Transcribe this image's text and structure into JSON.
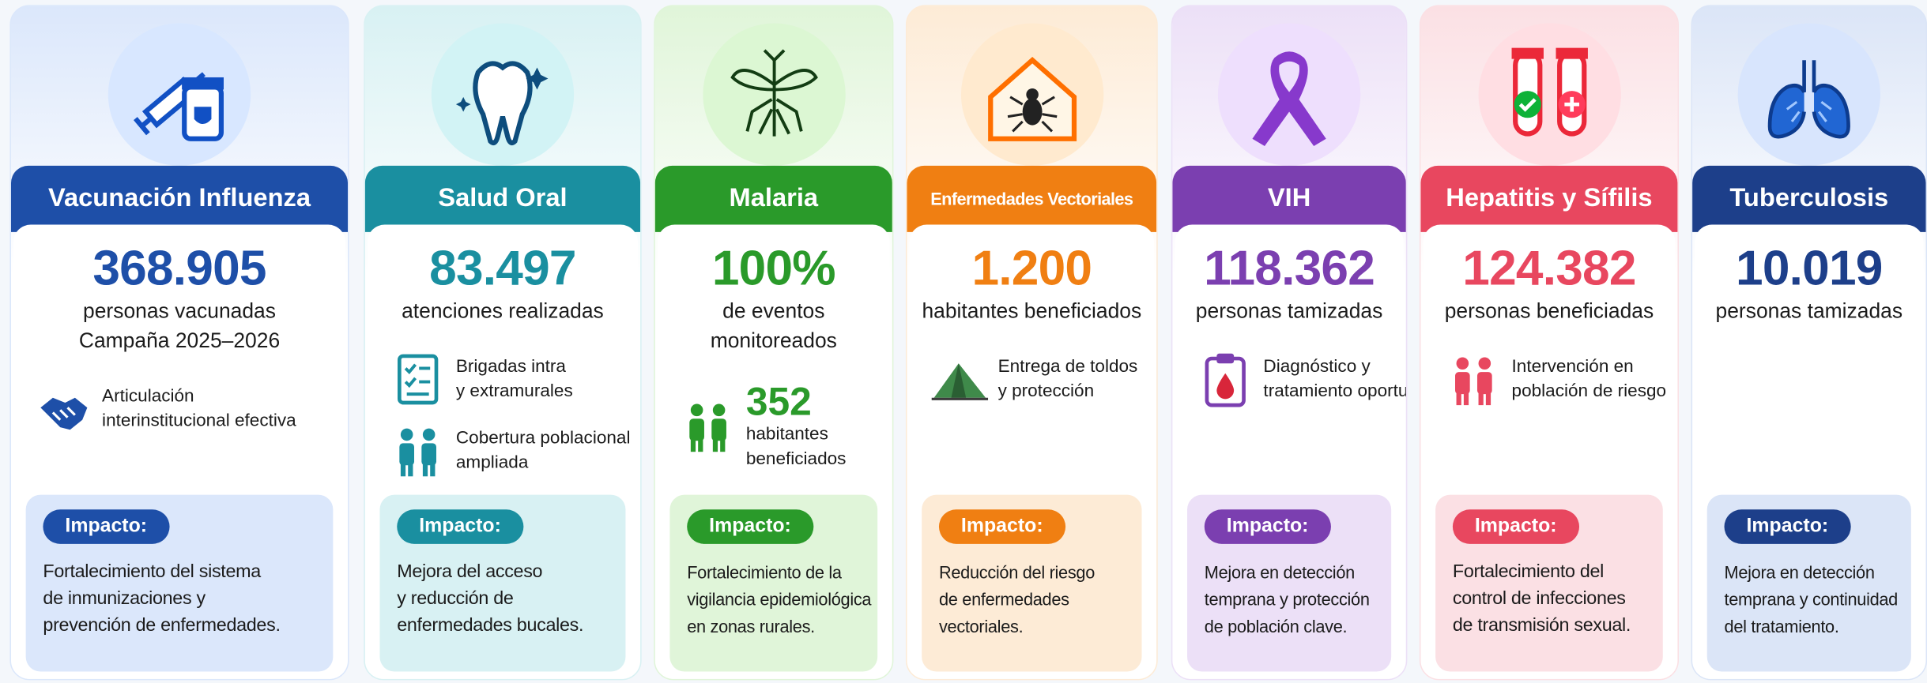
{
  "cards": [
    {
      "title": "Vacunación Influenza",
      "color": "#1e4fa8",
      "tint": "#dbe7fb",
      "stat": "368.905",
      "stat_label": [
        "personas vacunadas",
        "Campaña 2025–2026"
      ],
      "items": [
        {
          "icon": "handshake",
          "lines": [
            "Articulación",
            "interinstitucional efectiva"
          ]
        }
      ],
      "impact_label": "Impacto:",
      "impact": [
        "Fortalecimiento del sistema",
        "de inmunizaciones y",
        "prevención de enfermedades."
      ]
    },
    {
      "title": "Salud Oral",
      "color": "#1a8fa0",
      "tint": "#d8f1f3",
      "stat": "83.497",
      "stat_label": [
        "atenciones realizadas"
      ],
      "items": [
        {
          "icon": "checklist",
          "lines": [
            "Brigadas intra",
            "y extramurales"
          ]
        },
        {
          "icon": "people",
          "lines": [
            "Cobertura poblacional",
            "ampliada"
          ]
        }
      ],
      "impact_label": "Impacto:",
      "impact": [
        "Mejora del acceso",
        "y reducción de",
        "enfermedades bucales."
      ]
    },
    {
      "title": "Malaria",
      "color": "#2a9a2a",
      "tint": "#e0f5d9",
      "stat": "100%",
      "stat_label": [
        "de eventos",
        "monitoreados"
      ],
      "items": [
        {
          "icon": "people",
          "stat": "352",
          "lines": [
            "habitantes",
            "beneficiados"
          ]
        }
      ],
      "impact_label": "Impacto:",
      "impact": [
        "Fortalecimiento de la",
        "vigilancia epidemiológica",
        "en zonas rurales."
      ]
    },
    {
      "title": "Enfermedades Vectoriales",
      "color": "#f07f12",
      "tint": "#fdebd6",
      "stat": "1.200",
      "stat_label": [
        "habitantes beneficiados"
      ],
      "items": [
        {
          "icon": "tent",
          "lines": [
            "Entrega de toldos",
            "y protección"
          ]
        }
      ],
      "impact_label": "Impacto:",
      "impact": [
        "Reducción del riesgo",
        "de enfermedades",
        "vectoriales."
      ]
    },
    {
      "title": "VIH",
      "color": "#7b3fb0",
      "tint": "#ece0f7",
      "stat": "118.362",
      "stat_label": [
        "personas tamizadas"
      ],
      "items": [
        {
          "icon": "clipboard",
          "lines": [
            "Diagnóstico y",
            "tratamiento oportuno"
          ]
        }
      ],
      "impact_label": "Impacto:",
      "impact": [
        "Mejora en detección",
        "temprana y protección",
        "de población clave."
      ]
    },
    {
      "title": "Hepatitis y Sífilis",
      "color": "#e8475f",
      "tint": "#fbe0e4",
      "stat": "124.382",
      "stat_label": [
        "personas beneficiadas"
      ],
      "items": [
        {
          "icon": "people",
          "lines": [
            "Intervención en",
            "población de riesgo"
          ]
        }
      ],
      "impact_label": "Impacto:",
      "impact": [
        "Fortalecimiento del",
        "control de infecciones",
        "de transmisión sexual."
      ]
    },
    {
      "title": "Tuberculosis",
      "color": "#1d3f8a",
      "tint": "#dbe5f7",
      "stat": "10.019",
      "stat_label": [
        "personas tamizadas"
      ],
      "items": [],
      "impact_label": "Impacto:",
      "impact": [
        "Mejora en detección",
        "temprana y continuidad",
        "del tratamiento."
      ]
    }
  ]
}
